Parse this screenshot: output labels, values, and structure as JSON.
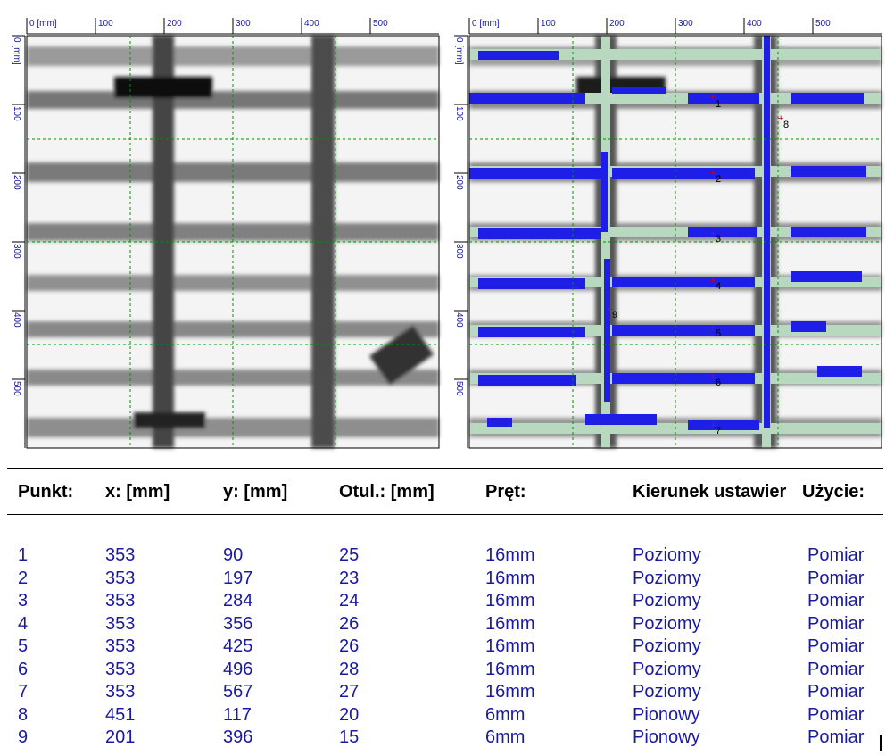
{
  "left_scan": {
    "x_ticks": [
      "0 [mm]",
      "100",
      "200",
      "300",
      "400",
      "500"
    ],
    "y_ticks": [
      "0 [mm]",
      "100",
      "200",
      "300",
      "400",
      "500"
    ]
  },
  "right_scan": {
    "x_ticks": [
      "0 [mm]",
      "100",
      "200",
      "300",
      "400",
      "500"
    ],
    "y_ticks": [
      "0 [mm]",
      "100",
      "200",
      "300",
      "400",
      "500"
    ],
    "markers": [
      "1",
      "2",
      "3",
      "4",
      "5",
      "6",
      "7",
      "8",
      "9"
    ]
  },
  "colors": {
    "rebar_detected": "#1e1ee6",
    "rebar_uncertain": "#b8d8c0",
    "text_values": "#1a1aa0",
    "axis_text": "#1a1aa0"
  },
  "table": {
    "headers": [
      "Punkt:",
      "x: [mm]",
      "y: [mm]",
      "Otul.: [mm]",
      "Pręt:",
      "Kierunek ustawier",
      "Użycie:"
    ],
    "rows": [
      [
        "1",
        "353",
        "90",
        "25",
        "16mm",
        "Poziomy",
        "Pomiar"
      ],
      [
        "2",
        "353",
        "197",
        "23",
        "16mm",
        "Poziomy",
        "Pomiar"
      ],
      [
        "3",
        "353",
        "284",
        "24",
        "16mm",
        "Poziomy",
        "Pomiar"
      ],
      [
        "4",
        "353",
        "356",
        "26",
        "16mm",
        "Poziomy",
        "Pomiar"
      ],
      [
        "5",
        "353",
        "425",
        "26",
        "16mm",
        "Poziomy",
        "Pomiar"
      ],
      [
        "6",
        "353",
        "496",
        "28",
        "16mm",
        "Poziomy",
        "Pomiar"
      ],
      [
        "7",
        "353",
        "567",
        "27",
        "16mm",
        "Poziomy",
        "Pomiar"
      ],
      [
        "8",
        "451",
        "117",
        "20",
        "6mm",
        "Pionowy",
        "Pomiar"
      ],
      [
        "9",
        "201",
        "396",
        "15",
        "6mm",
        "Pionowy",
        "Pomiar"
      ]
    ]
  }
}
